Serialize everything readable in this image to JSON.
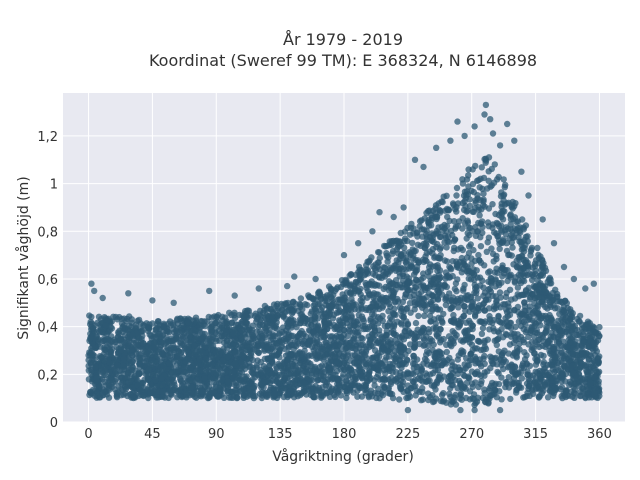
{
  "chart_data": {
    "type": "scatter",
    "title_line1": "År 1979 - 2019",
    "title_line2": "Koordinat (Sweref 99 TM): E 368324, N 6146898",
    "xlabel": "Vågriktning (grader)",
    "ylabel": "Signifikant våghöjd (m)",
    "xlim": [
      -18,
      378
    ],
    "ylim": [
      0,
      1.38
    ],
    "grid": true,
    "marker_color": "#2e5a74",
    "background_color": "#e8e9f1",
    "x_ticks": [
      {
        "value": 0,
        "label": "0"
      },
      {
        "value": 45,
        "label": "45"
      },
      {
        "value": 90,
        "label": "90"
      },
      {
        "value": 135,
        "label": "135"
      },
      {
        "value": 180,
        "label": "180"
      },
      {
        "value": 225,
        "label": "225"
      },
      {
        "value": 270,
        "label": "270"
      },
      {
        "value": 315,
        "label": "315"
      },
      {
        "value": 360,
        "label": "360"
      }
    ],
    "y_ticks": [
      {
        "value": 0,
        "label": "0"
      },
      {
        "value": 0.2,
        "label": "0,2"
      },
      {
        "value": 0.4,
        "label": "0,4"
      },
      {
        "value": 0.6,
        "label": "0,6"
      },
      {
        "value": 0.8,
        "label": "0,8"
      },
      {
        "value": 1,
        "label": "1"
      },
      {
        "value": 1.2,
        "label": "1,2"
      }
    ],
    "envelope": {
      "x": [
        0,
        20,
        45,
        70,
        90,
        110,
        135,
        160,
        180,
        200,
        225,
        245,
        260,
        270,
        280,
        285,
        295,
        315,
        330,
        345,
        360
      ],
      "upper": [
        0.45,
        0.45,
        0.43,
        0.44,
        0.45,
        0.47,
        0.5,
        0.54,
        0.6,
        0.7,
        0.82,
        0.92,
        1.0,
        1.08,
        1.12,
        1.1,
        1.0,
        0.75,
        0.55,
        0.45,
        0.4
      ],
      "lower": [
        0.1,
        0.1,
        0.1,
        0.1,
        0.1,
        0.1,
        0.1,
        0.1,
        0.1,
        0.1,
        0.09,
        0.08,
        0.07,
        0.07,
        0.07,
        0.08,
        0.09,
        0.1,
        0.1,
        0.1,
        0.1
      ]
    },
    "outliers": [
      {
        "x": 2,
        "y": 0.58
      },
      {
        "x": 4,
        "y": 0.55
      },
      {
        "x": 10,
        "y": 0.52
      },
      {
        "x": 28,
        "y": 0.54
      },
      {
        "x": 45,
        "y": 0.51
      },
      {
        "x": 60,
        "y": 0.5
      },
      {
        "x": 85,
        "y": 0.55
      },
      {
        "x": 103,
        "y": 0.53
      },
      {
        "x": 120,
        "y": 0.56
      },
      {
        "x": 140,
        "y": 0.57
      },
      {
        "x": 145,
        "y": 0.61
      },
      {
        "x": 160,
        "y": 0.6
      },
      {
        "x": 180,
        "y": 0.7
      },
      {
        "x": 190,
        "y": 0.75
      },
      {
        "x": 200,
        "y": 0.8
      },
      {
        "x": 205,
        "y": 0.88
      },
      {
        "x": 215,
        "y": 0.86
      },
      {
        "x": 222,
        "y": 0.9
      },
      {
        "x": 230,
        "y": 1.1
      },
      {
        "x": 236,
        "y": 1.07
      },
      {
        "x": 245,
        "y": 1.15
      },
      {
        "x": 255,
        "y": 1.18
      },
      {
        "x": 260,
        "y": 1.26
      },
      {
        "x": 265,
        "y": 1.2
      },
      {
        "x": 272,
        "y": 1.24
      },
      {
        "x": 279,
        "y": 1.29
      },
      {
        "x": 280,
        "y": 1.33
      },
      {
        "x": 283,
        "y": 1.27
      },
      {
        "x": 285,
        "y": 1.21
      },
      {
        "x": 290,
        "y": 1.16
      },
      {
        "x": 295,
        "y": 1.25
      },
      {
        "x": 300,
        "y": 1.18
      },
      {
        "x": 305,
        "y": 1.05
      },
      {
        "x": 310,
        "y": 0.95
      },
      {
        "x": 320,
        "y": 0.85
      },
      {
        "x": 328,
        "y": 0.75
      },
      {
        "x": 335,
        "y": 0.65
      },
      {
        "x": 342,
        "y": 0.6
      },
      {
        "x": 350,
        "y": 0.56
      },
      {
        "x": 356,
        "y": 0.58
      },
      {
        "x": 225,
        "y": 0.05
      },
      {
        "x": 262,
        "y": 0.05
      },
      {
        "x": 272,
        "y": 0.05
      },
      {
        "x": 290,
        "y": 0.05
      }
    ]
  }
}
